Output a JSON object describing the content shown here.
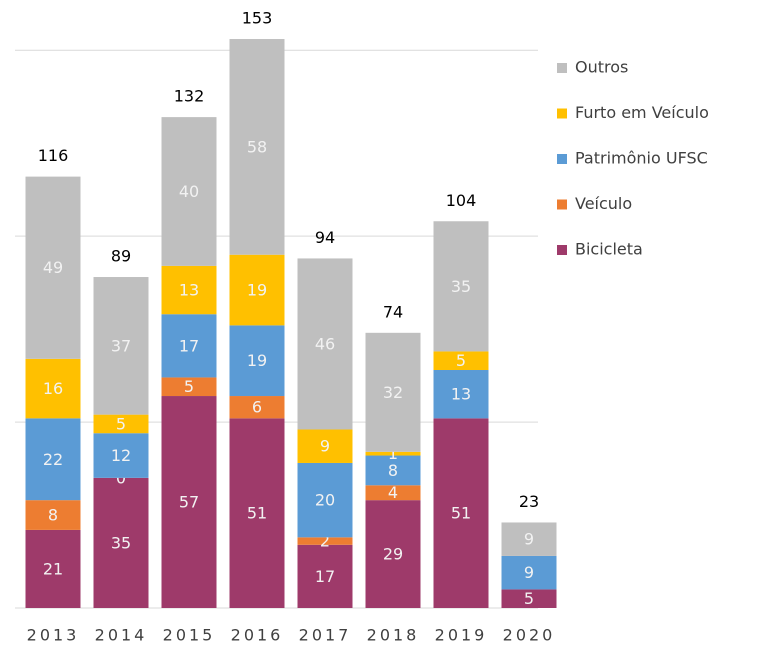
{
  "chart_data": {
    "type": "stacked_bar",
    "categories": [
      "2013",
      "2014",
      "2015",
      "2016",
      "2017",
      "2018",
      "2019",
      "2020"
    ],
    "series": [
      {
        "name": "Bicicleta",
        "color": "#9e3a6a",
        "values": [
          21,
          35,
          57,
          51,
          17,
          29,
          51,
          5
        ]
      },
      {
        "name": "Veículo",
        "color": "#ed7d31",
        "values": [
          8,
          0,
          5,
          6,
          2,
          4,
          null,
          null
        ]
      },
      {
        "name": "Patrimônio UFSC",
        "color": "#5b9bd5",
        "values": [
          22,
          12,
          17,
          19,
          20,
          8,
          13,
          9
        ]
      },
      {
        "name": "Furto em Veículo",
        "color": "#ffc000",
        "values": [
          16,
          5,
          13,
          19,
          9,
          1,
          5,
          null
        ]
      },
      {
        "name": "Outros",
        "color": "#bfbfbf",
        "values": [
          49,
          37,
          40,
          58,
          46,
          32,
          35,
          9
        ]
      }
    ],
    "totals": [
      116,
      89,
      132,
      153,
      94,
      74,
      104,
      23
    ],
    "ylim": [
      0,
      160
    ],
    "yticks": [
      0,
      50,
      100,
      150
    ],
    "grid": true,
    "legend": "right"
  }
}
